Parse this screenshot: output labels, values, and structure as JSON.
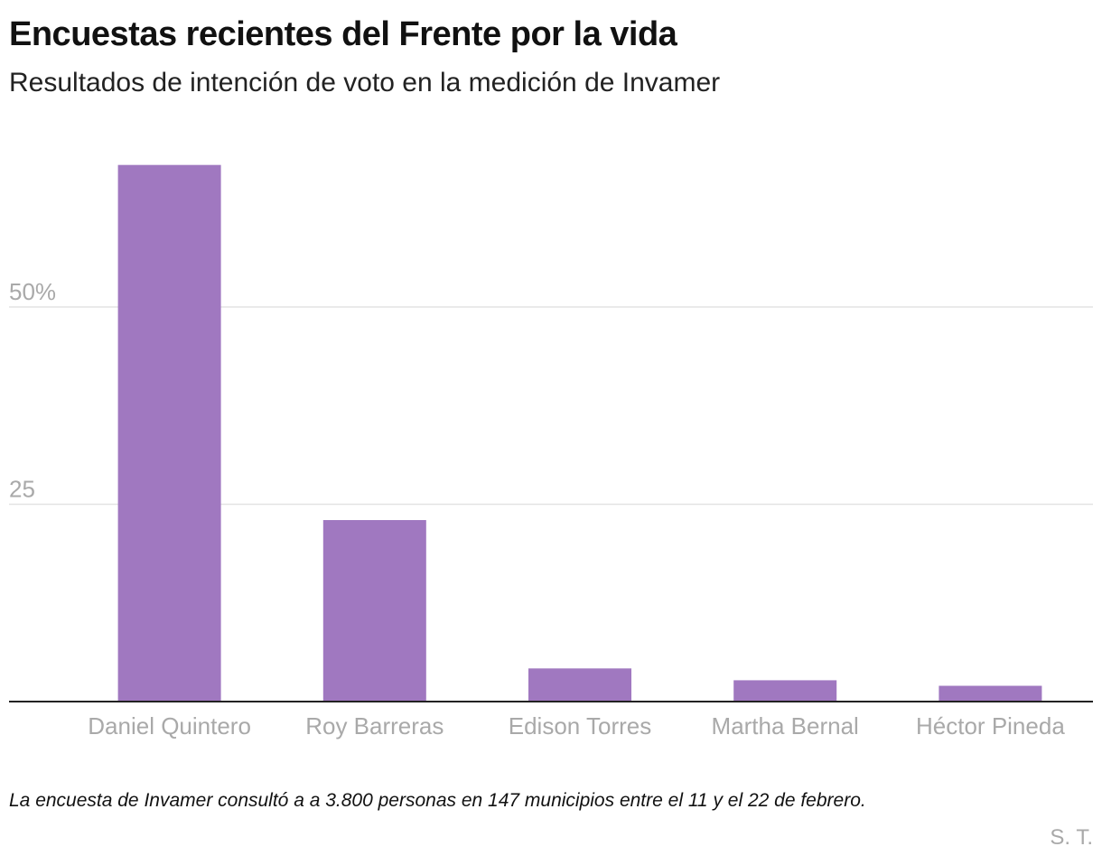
{
  "header": {
    "title": "Encuestas recientes del Frente por la vida",
    "subtitle": "Resultados de intención de voto en la medición de Invamer"
  },
  "footer": {
    "note": "La encuesta de Invamer consultó a a 3.800 personas en 147 municipios entre el 11 y el 22 de febrero.",
    "credit": "S. T."
  },
  "colors": {
    "bar": "#a078c0",
    "grid": "#e3e3e3",
    "baseline": "#222222",
    "tick_text": "#a9a9a9"
  },
  "chart_data": {
    "type": "bar",
    "title": "Encuestas recientes del Frente por la vida",
    "subtitle": "Resultados de intención de voto en la medición de Invamer",
    "xlabel": "",
    "ylabel": "",
    "categories": [
      "Daniel Quintero",
      "Roy Barreras",
      "Edison Torres",
      "Martha Bernal",
      "Héctor Pineda"
    ],
    "values": [
      68,
      23,
      4.2,
      2.7,
      2
    ],
    "unit": "%",
    "ylim": [
      0,
      68
    ],
    "yticks": [
      25,
      50
    ],
    "ytick_labels": [
      "25",
      "50%"
    ],
    "grid": true,
    "legend": "none"
  }
}
